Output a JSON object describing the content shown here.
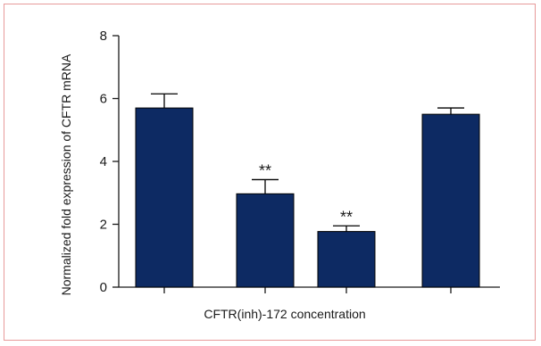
{
  "chart_data": {
    "type": "bar",
    "categories": [
      "",
      "",
      "",
      ""
    ],
    "values": [
      5.7,
      2.97,
      1.77,
      5.5
    ],
    "errors": [
      0.45,
      0.45,
      0.18,
      0.2
    ],
    "annotations": [
      "",
      "**",
      "**",
      ""
    ],
    "title": "",
    "xlabel": "CFTR(inh)-172 concentration",
    "ylabel": "Normalized fold expression of CFTR mRNA",
    "ylim": [
      0,
      8
    ],
    "yticks": [
      0,
      2,
      4,
      6,
      8
    ],
    "grid": false,
    "legend": "none",
    "colors": {
      "bar": "#0d2a63",
      "axis": "#1a1a1a",
      "border": "#e79a9a"
    }
  }
}
